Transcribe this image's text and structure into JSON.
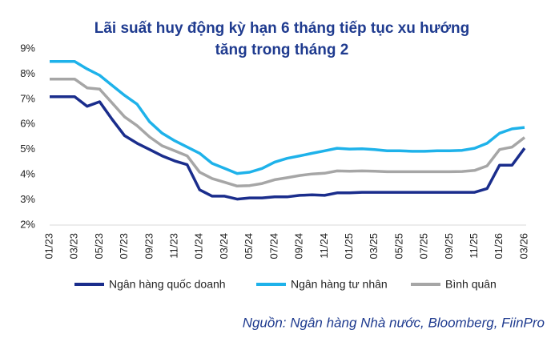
{
  "chart_data": {
    "type": "line",
    "title": [
      "Lãi suất huy động kỳ hạn 6 tháng tiếp tục xu hướng",
      "tăng trong tháng 2"
    ],
    "source": "Nguồn:  Ngân hàng Nhà nước, Bloomberg, FiinPro",
    "categories": [
      "01/23",
      null,
      "03/23",
      null,
      "05/23",
      null,
      "07/23",
      null,
      "09/23",
      null,
      "11/23",
      null,
      "01/24",
      null,
      "03/24",
      null,
      "05/24",
      null,
      "07/24",
      null,
      "09/24",
      null,
      "11/24",
      null,
      "01/25",
      null,
      "03/25",
      null,
      "05/25",
      null,
      "07/25",
      null,
      "09/25",
      null,
      "11/25",
      null,
      "01/26",
      null,
      "03/26"
    ],
    "ylim": [
      2,
      9
    ],
    "yticks": [
      {
        "value": 2,
        "label": "2%"
      },
      {
        "value": 3,
        "label": "3%"
      },
      {
        "value": 4,
        "label": "4%"
      },
      {
        "value": 5,
        "label": "5%"
      },
      {
        "value": 6,
        "label": "6%"
      },
      {
        "value": 7,
        "label": "7%"
      },
      {
        "value": 8,
        "label": "8%"
      },
      {
        "value": 9,
        "label": "9%"
      }
    ],
    "series": [
      {
        "name": "Ngân hàng quốc doanh",
        "color": "#1a2d8c",
        "values": [
          7.1,
          7.1,
          7.1,
          6.72,
          6.9,
          6.2,
          5.55,
          5.25,
          5.0,
          4.75,
          4.55,
          4.4,
          3.4,
          3.15,
          3.15,
          3.03,
          3.08,
          3.08,
          3.12,
          3.12,
          3.18,
          3.2,
          3.18,
          3.28,
          3.28,
          3.3,
          3.3,
          3.3,
          3.3,
          3.3,
          3.3,
          3.3,
          3.3,
          3.3,
          3.3,
          3.45,
          4.38,
          4.38,
          5.05
        ]
      },
      {
        "name": "Ngân hàng tư nhân",
        "color": "#1eb2ea",
        "values": [
          8.5,
          8.5,
          8.5,
          8.2,
          7.95,
          7.55,
          7.15,
          6.8,
          6.1,
          5.65,
          5.35,
          5.1,
          4.85,
          4.45,
          4.25,
          4.05,
          4.1,
          4.25,
          4.5,
          4.65,
          4.75,
          4.85,
          4.95,
          5.05,
          5.02,
          5.03,
          5.0,
          4.95,
          4.95,
          4.93,
          4.93,
          4.95,
          4.95,
          4.97,
          5.05,
          5.25,
          5.65,
          5.82,
          5.88
        ]
      },
      {
        "name": "Bình quân",
        "color": "#a6a6a6",
        "values": [
          7.8,
          7.8,
          7.8,
          7.45,
          7.4,
          6.85,
          6.3,
          5.95,
          5.5,
          5.15,
          4.95,
          4.75,
          4.1,
          3.85,
          3.7,
          3.55,
          3.57,
          3.65,
          3.8,
          3.88,
          3.97,
          4.03,
          4.06,
          4.15,
          4.14,
          4.15,
          4.14,
          4.12,
          4.12,
          4.12,
          4.12,
          4.12,
          4.12,
          4.13,
          4.17,
          4.35,
          5.0,
          5.1,
          5.48
        ]
      }
    ]
  }
}
